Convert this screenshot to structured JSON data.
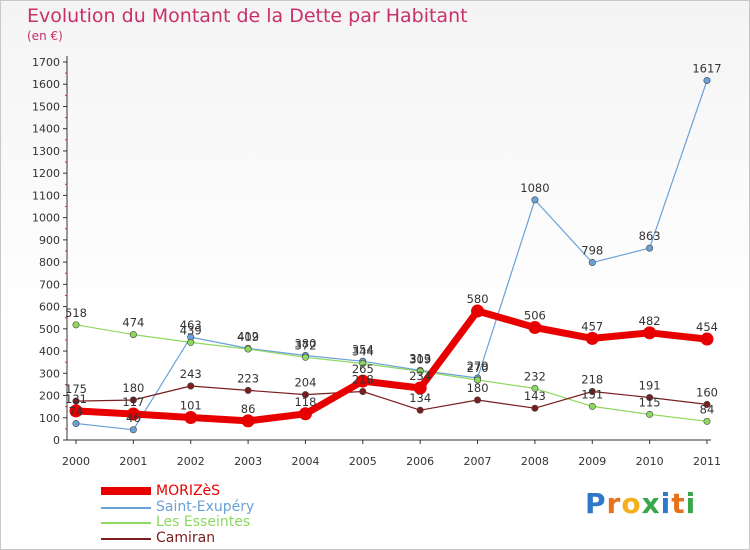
{
  "title": "Evolution du Montant de la Dette par Habitant",
  "subtitle": "(en €)",
  "logo": {
    "letters": [
      "P",
      "r",
      "o",
      "x",
      "i",
      "t",
      "i"
    ],
    "colors": [
      "#2d78c8",
      "#e86f1c",
      "#f2b01c",
      "#3aa64a",
      "#2d78c8",
      "#e86f1c",
      "#3aa64a"
    ]
  },
  "chart_data": {
    "type": "line",
    "x": [
      "2000",
      "2001",
      "2002",
      "2003",
      "2004",
      "2005",
      "2006",
      "2007",
      "2008",
      "2009",
      "2010",
      "2011"
    ],
    "ylim": [
      0,
      1700
    ],
    "yticks": [
      0,
      100,
      200,
      300,
      400,
      500,
      600,
      700,
      800,
      900,
      1000,
      1100,
      1200,
      1300,
      1400,
      1500,
      1600,
      1700
    ],
    "grid": false,
    "legend": "bottom-left",
    "series": [
      {
        "name": "MORIZèS",
        "color": "#e80000",
        "width": 7,
        "marker": 6.5,
        "values": [
          131,
          117,
          101,
          86,
          118,
          265,
          234,
          580,
          506,
          457,
          482,
          454
        ],
        "labels": [
          "131",
          "117",
          "101",
          "86",
          "118",
          "265",
          "234",
          "580",
          "506",
          "457",
          "482",
          "454"
        ]
      },
      {
        "name": "Saint-Exupéry",
        "color": "#6aa2d8",
        "width": 1.2,
        "marker": 3.2,
        "values": [
          74,
          46,
          463,
          412,
          380,
          354,
          313,
          279,
          1080,
          798,
          863,
          1617
        ],
        "labels": [
          "74",
          "46",
          "463",
          "412",
          "380",
          "354",
          "313",
          "279",
          "1080",
          "798",
          "863",
          "1617"
        ]
      },
      {
        "name": "Les Esseintes",
        "color": "#8ed860",
        "width": 1.2,
        "marker": 3.2,
        "values": [
          518,
          474,
          439,
          409,
          372,
          344,
          309,
          270,
          232,
          151,
          115,
          84
        ],
        "labels": [
          "518",
          "474",
          "439",
          "409",
          "372",
          "344",
          "309",
          "270",
          "232",
          "151",
          "115",
          "84"
        ]
      },
      {
        "name": "Camiran",
        "color": "#7a1e1e",
        "width": 1.2,
        "marker": 3.2,
        "values": [
          175,
          180,
          243,
          223,
          204,
          218,
          134,
          180,
          143,
          218,
          191,
          160
        ],
        "labels": [
          "175",
          "180",
          "243",
          "223",
          "204",
          "218",
          "134",
          "180",
          "143",
          "218",
          "191",
          "160"
        ]
      }
    ]
  }
}
